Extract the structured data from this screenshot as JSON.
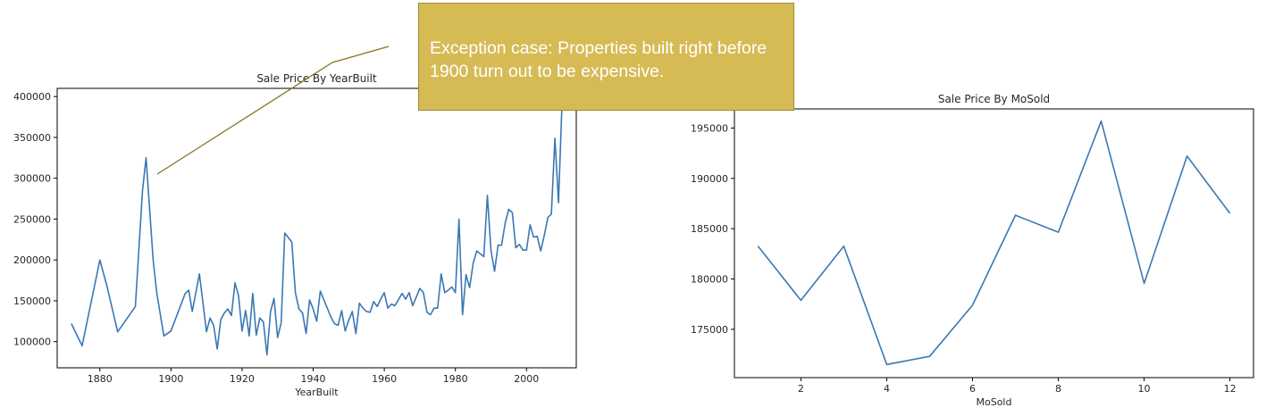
{
  "colors": {
    "line": "#3a78b4",
    "callout_bg": "#d6bb55",
    "pointer": "#8a7322",
    "axis": "#000000"
  },
  "callout": {
    "text": "Exception case: Properties built right before 1900 turn out to be expensive."
  },
  "chart_data": [
    {
      "type": "line",
      "title": "Sale Price By YearBuilt",
      "xlabel": "YearBuilt",
      "ylabel": "",
      "xlim": [
        1868,
        2014
      ],
      "ylim": [
        68000,
        410000
      ],
      "xticks": [
        1880,
        1900,
        1920,
        1940,
        1960,
        1980,
        2000
      ],
      "yticks": [
        100000,
        150000,
        200000,
        250000,
        300000,
        350000,
        400000
      ],
      "series": [
        {
          "x": [
            1872,
            1875,
            1880,
            1882,
            1885,
            1890,
            1892,
            1893,
            1895,
            1896,
            1898,
            1900,
            1904,
            1905,
            1906,
            1908,
            1910,
            1911,
            1912,
            1913,
            1914,
            1915,
            1916,
            1917,
            1918,
            1919,
            1920,
            1921,
            1922,
            1923,
            1924,
            1925,
            1926,
            1927,
            1928,
            1929,
            1930,
            1931,
            1932,
            1934,
            1935,
            1936,
            1937,
            1938,
            1939,
            1940,
            1941,
            1942,
            1945,
            1946,
            1947,
            1948,
            1949,
            1950,
            1951,
            1952,
            1953,
            1954,
            1955,
            1956,
            1957,
            1958,
            1959,
            1960,
            1961,
            1962,
            1963,
            1965,
            1966,
            1967,
            1968,
            1970,
            1971,
            1972,
            1973,
            1974,
            1975,
            1976,
            1977,
            1978,
            1979,
            1980,
            1981,
            1982,
            1983,
            1984,
            1985,
            1986,
            1988,
            1989,
            1990,
            1991,
            1992,
            1993,
            1994,
            1995,
            1996,
            1997,
            1998,
            1999,
            2000,
            2001,
            2002,
            2003,
            2004,
            2005,
            2006,
            2007,
            2008,
            2009,
            2010
          ],
          "y": [
            122000,
            95000,
            200000,
            168000,
            112000,
            143000,
            285000,
            325000,
            200000,
            160000,
            107000,
            113000,
            159000,
            163000,
            137000,
            183000,
            112000,
            129000,
            120000,
            91000,
            127000,
            135000,
            140000,
            132000,
            172000,
            156000,
            113000,
            138000,
            107000,
            159000,
            108000,
            129000,
            124000,
            84000,
            137000,
            153000,
            105000,
            123000,
            233000,
            222000,
            160000,
            140000,
            135000,
            110000,
            151000,
            140000,
            125000,
            162000,
            130000,
            122000,
            120000,
            138000,
            113000,
            126000,
            137000,
            110000,
            147000,
            141000,
            137000,
            136000,
            149000,
            143000,
            152000,
            160000,
            141000,
            146000,
            144000,
            159000,
            152000,
            160000,
            144000,
            165000,
            160000,
            136000,
            133000,
            141000,
            141000,
            183000,
            160000,
            163000,
            167000,
            160000,
            250000,
            133000,
            182000,
            166000,
            196000,
            211000,
            204000,
            279000,
            212000,
            186000,
            218000,
            218000,
            245000,
            262000,
            258000,
            215000,
            219000,
            212000,
            212000,
            243000,
            228000,
            229000,
            211000,
            230000,
            252000,
            256000,
            349000,
            270000,
            394000
          ]
        }
      ]
    },
    {
      "type": "line",
      "title": "Sale Price By MoSold",
      "xlabel": "MoSold",
      "ylabel": "",
      "xlim": [
        0.45,
        12.55
      ],
      "ylim": [
        170200,
        196900
      ],
      "xticks": [
        2,
        4,
        6,
        8,
        10,
        12
      ],
      "yticks": [
        175000,
        180000,
        185000,
        190000,
        195000
      ],
      "series": [
        {
          "x": [
            1,
            2,
            3,
            4,
            5,
            6,
            7,
            8,
            9,
            10,
            11,
            12
          ],
          "y": [
            183256,
            177882,
            183253,
            171503,
            172307,
            177395,
            186331,
            184651,
            195683,
            179563,
            192210,
            186518
          ]
        }
      ]
    }
  ]
}
